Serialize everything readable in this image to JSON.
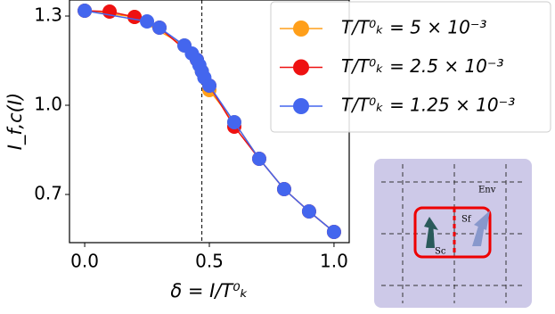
{
  "chart_data": {
    "type": "line",
    "xlabel": "δ = I/T⁰ₖ",
    "ylabel": "I_f,c(I)",
    "xlim": [
      -0.061,
      1.061
    ],
    "ylim": [
      0.538,
      1.354
    ],
    "xticks": [
      {
        "value": 0,
        "label": "0.0"
      },
      0.5,
      {
        "value": 1,
        "label": "1.0"
      }
    ],
    "yticks": [
      0.7,
      {
        "value": 1,
        "label": "1.0"
      },
      1.3
    ],
    "vline": 0.47,
    "legend": "upper right",
    "series": [
      {
        "name": "T/T⁰ₖ = 5 × 10⁻³",
        "color": "#ff9f1a",
        "x": [
          0,
          0.2,
          0.4,
          0.45,
          0.47,
          0.5,
          0.6,
          0.7,
          0.8,
          0.9,
          1.0
        ],
        "values": [
          1.318,
          1.297,
          1.201,
          1.153,
          1.114,
          1.051,
          0.943,
          0.82,
          0.718,
          0.643,
          0.574
        ]
      },
      {
        "name": "T/T⁰ₖ = 2.5 × 10⁻³",
        "color": "#ee1111",
        "x": [
          0,
          0.1,
          0.2,
          0.3,
          0.45,
          0.5,
          0.6,
          0.7,
          0.8,
          0.9,
          1.0
        ],
        "values": [
          1.318,
          1.315,
          1.297,
          1.261,
          1.153,
          1.066,
          0.928,
          0.82,
          0.718,
          0.643,
          0.574
        ]
      },
      {
        "name": "T/T⁰ₖ = 1.25 × 10⁻³",
        "color": "#4466ee",
        "x": [
          0,
          0.25,
          0.3,
          0.4,
          0.43,
          0.45,
          0.46,
          0.47,
          0.48,
          0.5,
          0.6,
          0.7,
          0.8,
          0.9,
          1.0
        ],
        "values": [
          1.318,
          1.282,
          1.261,
          1.201,
          1.174,
          1.153,
          1.135,
          1.114,
          1.093,
          1.066,
          0.943,
          0.82,
          0.718,
          0.643,
          0.574
        ]
      }
    ],
    "inset": {
      "env": "Env",
      "sc": "Sc",
      "sf": "Sf"
    }
  }
}
